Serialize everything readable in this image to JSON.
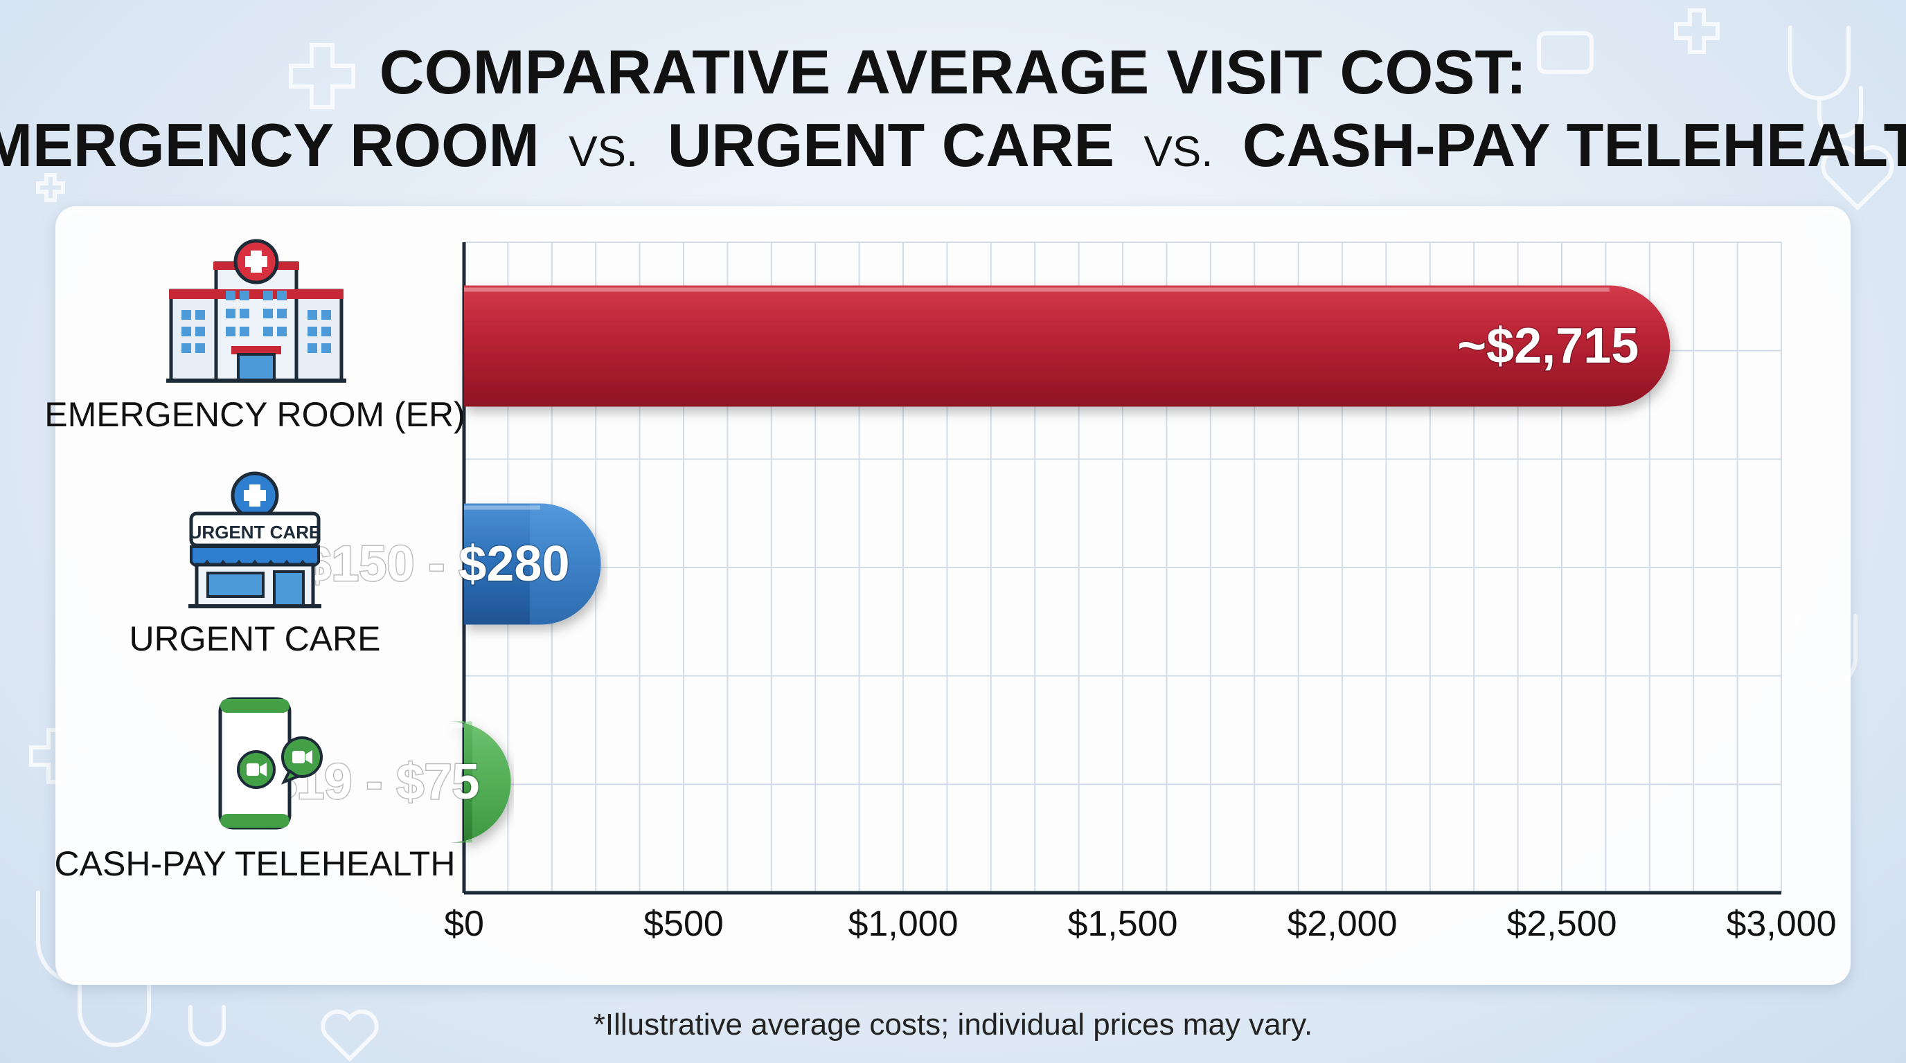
{
  "title": {
    "line1": "COMPARATIVE AVERAGE VISIT COST:",
    "line2": {
      "part1": "EMERGENCY ROOM",
      "vs1": "VS.",
      "part2": "URGENT CARE",
      "vs2": "VS.",
      "part3": "CASH-PAY TELEHEALTH"
    }
  },
  "footnote": "*Illustrative average costs; individual prices may vary.",
  "icons": {
    "er": "hospital-building-icon",
    "urgent": "urgent-care-clinic-icon",
    "urgent_sign": "URGENT CARE",
    "tele": "smartphone-video-call-icon"
  },
  "colors": {
    "er": "#b3202f",
    "urgent": "#2e6fb7",
    "tele": "#3f9b45",
    "title": "#111111",
    "axis": "#1d2a38"
  },
  "chart_data": {
    "type": "bar",
    "orientation": "horizontal",
    "categories": [
      "EMERGENCY ROOM (ER)",
      "URGENT CARE",
      "CASH-PAY TELEHEALTH"
    ],
    "values": [
      2715,
      280,
      75
    ],
    "ranges": [
      null,
      [
        150,
        280
      ],
      [
        19,
        75
      ]
    ],
    "data_labels": [
      "~$2,715",
      "~$150 - $280",
      "~$19 - $75"
    ],
    "xlim": [
      0,
      3000
    ],
    "xticks": [
      0,
      500,
      1000,
      1500,
      2000,
      2500,
      3000
    ],
    "xtick_labels": [
      "$0",
      "$500",
      "$1,000",
      "$1,500",
      "$2,000",
      "$2,500",
      "$3,000"
    ],
    "grid": true,
    "title": "",
    "xlabel": "",
    "ylabel": ""
  }
}
